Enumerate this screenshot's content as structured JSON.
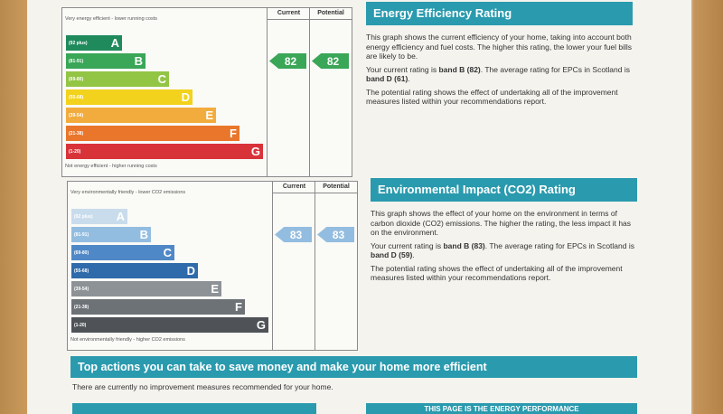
{
  "energy": {
    "col_current": "Current",
    "col_potential": "Potential",
    "top_note": "Very energy efficient - lower running costs",
    "bottom_note": "Not energy efficient - higher running costs",
    "bands": [
      {
        "range": "(92 plus)",
        "letter": "A",
        "color": "#1f8a5c"
      },
      {
        "range": "(81-91)",
        "letter": "B",
        "color": "#3aa657"
      },
      {
        "range": "(69-80)",
        "letter": "C",
        "color": "#93c544"
      },
      {
        "range": "(55-68)",
        "letter": "D",
        "color": "#f2d21c"
      },
      {
        "range": "(39-54)",
        "letter": "E",
        "color": "#f2ac3e"
      },
      {
        "range": "(21-38)",
        "letter": "F",
        "color": "#e9762b"
      },
      {
        "range": "(1-20)",
        "letter": "G",
        "color": "#d9333a"
      }
    ],
    "current": 82,
    "potential": 82,
    "current_band": 1,
    "potential_band": 1
  },
  "environment": {
    "col_current": "Current",
    "col_potential": "Potential",
    "top_note": "Very environmentally friendly - lower CO2 emissions",
    "bottom_note": "Not environmentally friendly - higher CO2 emissions",
    "bands": [
      {
        "range": "(92 plus)",
        "letter": "A",
        "color": "#c9dcec"
      },
      {
        "range": "(81-91)",
        "letter": "B",
        "color": "#93bde0"
      },
      {
        "range": "(69-80)",
        "letter": "C",
        "color": "#4f88c6"
      },
      {
        "range": "(55-68)",
        "letter": "D",
        "color": "#2f6aab"
      },
      {
        "range": "(39-54)",
        "letter": "E",
        "color": "#8c9296"
      },
      {
        "range": "(21-38)",
        "letter": "F",
        "color": "#6d7276"
      },
      {
        "range": "(1-20)",
        "letter": "G",
        "color": "#4f5357"
      }
    ],
    "current": 83,
    "potential": 83,
    "current_band": 1,
    "potential_band": 1
  },
  "energy_text": {
    "heading": "Energy Efficiency Rating",
    "p1": "This graph shows the current efficiency of your home, taking into account both energy efficiency and fuel costs. The higher this rating, the lower your fuel bills are likely to be.",
    "p2": [
      "Your current rating is ",
      "band B (82)",
      ". The average rating for EPCs in Scotland is ",
      "band D (61)",
      "."
    ],
    "p3": "The potential rating shows the effect of undertaking all of the improvement measures listed within your recommendations report."
  },
  "environment_text": {
    "heading": "Environmental Impact (CO2) Rating",
    "p1": "This graph shows the effect of your home on the environment in terms of carbon dioxide (CO2) emissions. The higher the rating, the less impact it has on the environment.",
    "p2": [
      "Your current rating is ",
      "band B (83)",
      ". The average rating for EPCs in Scotland is ",
      "band D (59)",
      "."
    ],
    "p3": "The potential rating shows the effect of undertaking all of the improvement measures listed within your recommendations report."
  },
  "actions": {
    "heading": "Top actions you can take to save money and make your home more efficient",
    "note": "There are currently no improvement measures recommended for your home."
  },
  "footer_box": "THIS PAGE IS THE ENERGY PERFORMANCE"
}
